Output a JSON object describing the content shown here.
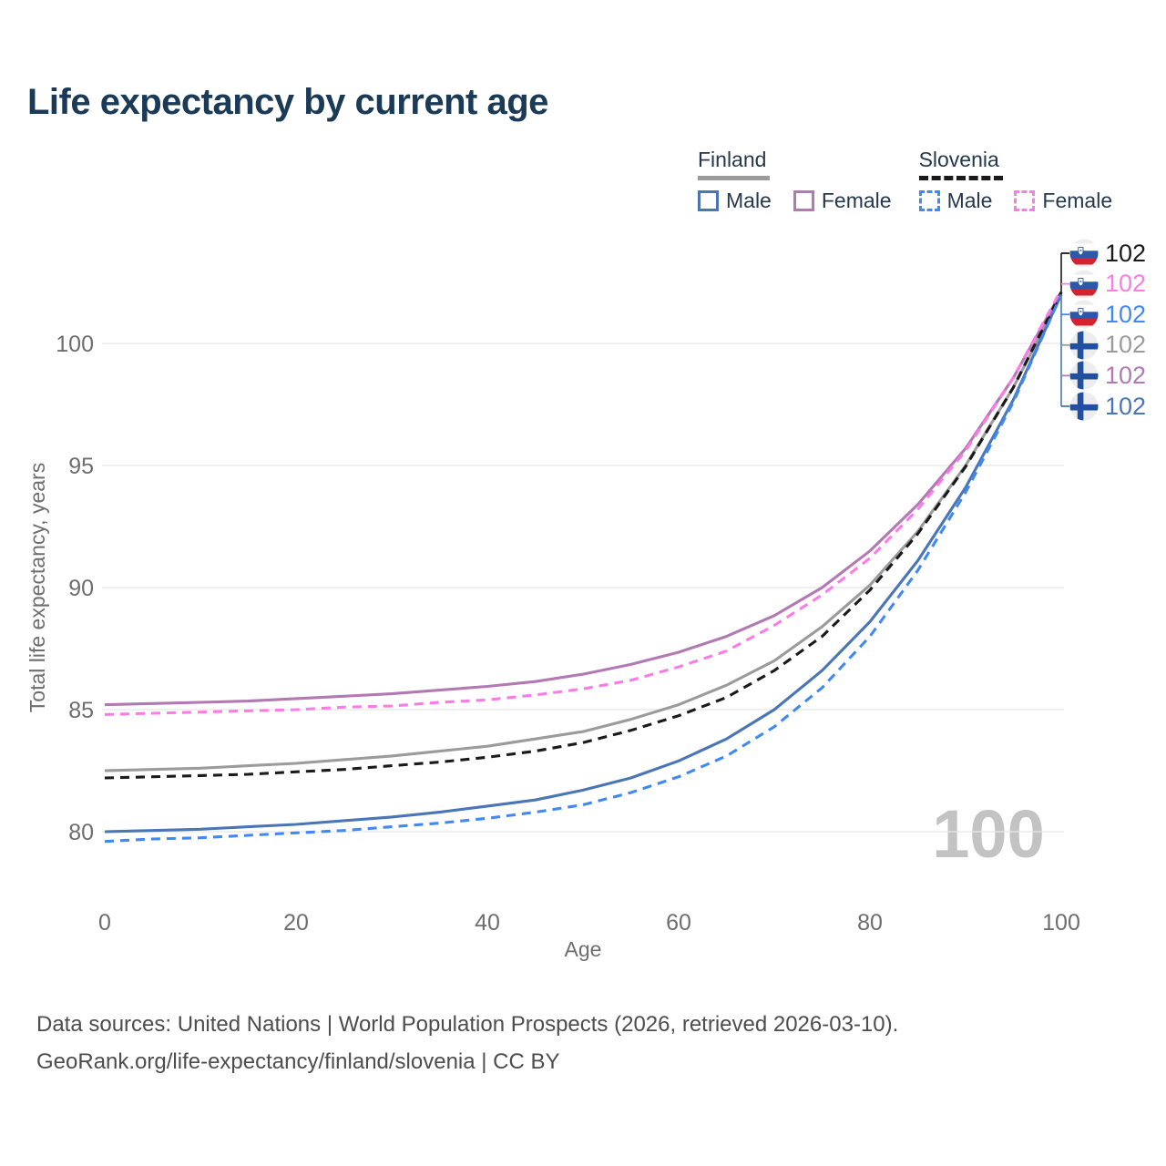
{
  "header": {
    "title": "Life expectancy by current age"
  },
  "legend": {
    "groups": [
      {
        "label": "Finland",
        "line_style": "solid",
        "underline_color": "#9b9b9b",
        "items": [
          {
            "label": "Male",
            "color": "#4a76b8",
            "dash": false
          },
          {
            "label": "Female",
            "color": "#b279b2",
            "dash": false
          }
        ]
      },
      {
        "label": "Slovenia",
        "line_style": "dashed",
        "underline_color": "#1a1a1a",
        "items": [
          {
            "label": "Male",
            "color": "#4189f2",
            "dash": true
          },
          {
            "label": "Female",
            "color": "#fb7ce6",
            "dash": true
          }
        ]
      }
    ]
  },
  "axes": {
    "x_title": "Age",
    "y_title": "Total life expectancy, years",
    "x_ticks": [
      0,
      20,
      40,
      60,
      80,
      100
    ],
    "y_ticks": [
      80,
      85,
      90,
      95,
      100
    ],
    "tick_color": "#6e6e6e",
    "grid_color": "#e7e7e7"
  },
  "watermark": "100",
  "end_labels": [
    {
      "series": "Slovenia Both sexes",
      "flag": "slovenia",
      "value": "102",
      "color": "#1a1a1a"
    },
    {
      "series": "Slovenia Female",
      "flag": "slovenia",
      "value": "102",
      "color": "#fb7ce6"
    },
    {
      "series": "Slovenia Male",
      "flag": "slovenia",
      "value": "102",
      "color": "#4189f2"
    },
    {
      "series": "Finland Both sexes",
      "flag": "finland",
      "value": "102",
      "color": "#9b9b9b"
    },
    {
      "series": "Finland Female",
      "flag": "finland",
      "value": "102",
      "color": "#b279b2"
    },
    {
      "series": "Finland Male",
      "flag": "finland",
      "value": "102",
      "color": "#4a76b8"
    }
  ],
  "footer": {
    "line1": "Data sources: United Nations | World Population Prospects (2026, retrieved 2026-03-10).",
    "line2": "GeoRank.org/life-expectancy/finland/slovenia | CC BY"
  },
  "chart_data": {
    "type": "line",
    "title": "Life expectancy by current age",
    "xlabel": "Age",
    "ylabel": "Total life expectancy, years",
    "xlim": [
      0,
      100
    ],
    "ylim": [
      78.5,
      103.5
    ],
    "grid": "horizontal",
    "legend_position": "top-right",
    "ages": [
      0,
      5,
      10,
      15,
      20,
      25,
      30,
      35,
      40,
      45,
      50,
      55,
      60,
      65,
      70,
      75,
      80,
      85,
      90,
      95,
      100
    ],
    "series": [
      {
        "name": "Finland Male",
        "color": "#4a76b8",
        "dash": "solid",
        "values": [
          80.0,
          80.05,
          80.1,
          80.2,
          80.3,
          80.45,
          80.6,
          80.8,
          81.05,
          81.3,
          81.7,
          82.2,
          82.9,
          83.8,
          85.0,
          86.6,
          88.6,
          91.1,
          94.1,
          97.7,
          102.0
        ]
      },
      {
        "name": "Finland Female",
        "color": "#b279b2",
        "dash": "solid",
        "values": [
          85.2,
          85.25,
          85.3,
          85.35,
          85.45,
          85.55,
          85.65,
          85.8,
          85.95,
          86.15,
          86.45,
          86.85,
          87.35,
          88.0,
          88.85,
          90.0,
          91.5,
          93.4,
          95.7,
          98.6,
          102.1
        ]
      },
      {
        "name": "Finland Both sexes",
        "color": "#9b9b9b",
        "dash": "solid",
        "values": [
          82.5,
          82.55,
          82.6,
          82.7,
          82.8,
          82.95,
          83.1,
          83.3,
          83.5,
          83.8,
          84.1,
          84.6,
          85.2,
          86.0,
          87.0,
          88.4,
          90.1,
          92.3,
          95.0,
          98.2,
          102.0
        ]
      },
      {
        "name": "Slovenia Male",
        "color": "#4189f2",
        "dash": "dashed",
        "values": [
          79.6,
          79.7,
          79.75,
          79.85,
          79.95,
          80.05,
          80.2,
          80.35,
          80.55,
          80.8,
          81.1,
          81.6,
          82.25,
          83.1,
          84.3,
          85.9,
          88.0,
          90.7,
          93.9,
          97.6,
          102.0
        ]
      },
      {
        "name": "Slovenia Female",
        "color": "#fb7ce6",
        "dash": "dashed",
        "values": [
          84.8,
          84.85,
          84.9,
          84.95,
          85.0,
          85.1,
          85.15,
          85.3,
          85.4,
          85.6,
          85.85,
          86.2,
          86.75,
          87.4,
          88.45,
          89.7,
          91.2,
          93.2,
          95.6,
          98.6,
          102.2
        ]
      },
      {
        "name": "Slovenia Both sexes",
        "color": "#1a1a1a",
        "dash": "dashed",
        "values": [
          82.2,
          82.25,
          82.3,
          82.35,
          82.45,
          82.55,
          82.7,
          82.85,
          83.05,
          83.3,
          83.65,
          84.15,
          84.75,
          85.5,
          86.6,
          88.0,
          89.9,
          92.2,
          94.95,
          98.2,
          102.1
        ]
      }
    ]
  }
}
